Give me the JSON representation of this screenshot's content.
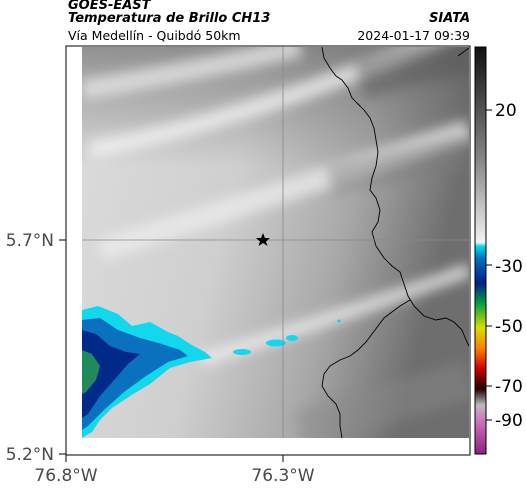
{
  "header": {
    "satellite": "GOES-EAST",
    "product": "Temperatura de Brillo CH13",
    "subtitle": "Vía Medellín - Quibdó 50km",
    "org": "SIATA",
    "datetime": "2024-01-17 09:39"
  },
  "map": {
    "lat_ticks": [
      "5.7°N",
      "5.2°N"
    ],
    "lon_ticks": [
      "76.8°W",
      "76.3°W"
    ],
    "marker_icon": "star-icon"
  },
  "colorbar": {
    "ticks": [
      "20",
      "-30",
      "-50",
      "-70",
      "-90"
    ]
  },
  "colors": {
    "cloud_cyan": "#12d8ee",
    "cloud_blue": "#0a70c0",
    "cloud_deep": "#002a8a",
    "cloud_green": "#1f8a5a"
  }
}
